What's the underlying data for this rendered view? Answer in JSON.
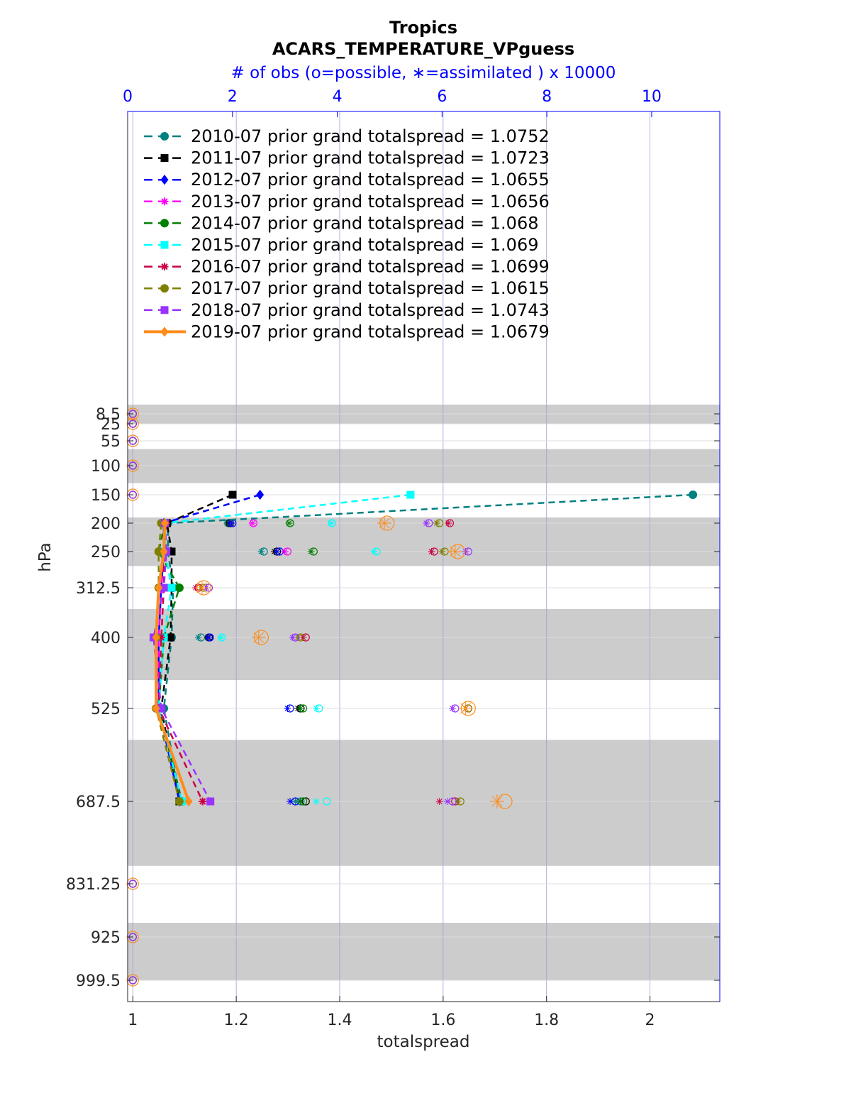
{
  "chart_data": {
    "type": "line",
    "title": "Tropics",
    "subtitle": "ACARS_TEMPERATURE_VPguess",
    "top_axis_label": "# of obs (o=possible, ∗=assimilated ) x 10000",
    "xlabel": "totalspread",
    "ylabel": "hPa",
    "xlim": [
      0.99,
      2.135
    ],
    "top_xlim": [
      0,
      11.3
    ],
    "y_order": "reversed",
    "x_ticks": [
      1,
      1.2,
      1.4,
      1.6,
      1.8,
      2
    ],
    "x_tick_labels": [
      "1",
      "1.2",
      "1.4",
      "1.6",
      "1.8",
      "2"
    ],
    "top_ticks": [
      0,
      2,
      4,
      6,
      8,
      10
    ],
    "top_tick_labels": [
      "0",
      "2",
      "4",
      "6",
      "8",
      "10"
    ],
    "levels": [
      "8.5",
      "25",
      "55",
      "100",
      "150",
      "200",
      "250",
      "312.5",
      "400",
      "525",
      "687.5",
      "831.25",
      "925",
      "999.5"
    ],
    "shaded_bands": [
      [
        0,
        25
      ],
      [
        70,
        130
      ],
      [
        190,
        275
      ],
      [
        350,
        475
      ],
      [
        580,
        800
      ],
      [
        900,
        999.5
      ]
    ],
    "legend_position": "top-left",
    "series": [
      {
        "name": "2010-07 prior grand totalspread = 1.0752",
        "color": "#008080",
        "marker": "circle",
        "dash": "dashed",
        "y": [
          150,
          200,
          250,
          312.5,
          400,
          525,
          687.5
        ],
        "x": [
          2.083,
          1.068,
          1.068,
          1.078,
          1.075,
          1.06,
          1.092
        ],
        "obs_possible": [
          null,
          1.92,
          2.6,
          null,
          1.4,
          3.3,
          3.3
        ],
        "obs_assim": [
          null,
          1.9,
          2.55,
          null,
          1.35,
          3.25,
          3.2
        ]
      },
      {
        "name": "2011-07 prior grand totalspread = 1.0723",
        "color": "#000000",
        "marker": "square",
        "dash": "dashed",
        "y": [
          150,
          200,
          250,
          312.5,
          400,
          525,
          687.5
        ],
        "x": [
          1.193,
          1.066,
          1.075,
          1.075,
          1.073,
          1.055,
          1.09
        ],
        "obs_possible": [
          null,
          1.95,
          2.85,
          null,
          1.55,
          3.3,
          3.4
        ],
        "obs_assim": [
          null,
          1.93,
          2.8,
          null,
          1.53,
          3.25,
          3.3
        ]
      },
      {
        "name": "2012-07 prior grand totalspread = 1.0655",
        "color": "#0000ff",
        "marker": "diamond",
        "dash": "dashed",
        "y": [
          150,
          200,
          250,
          312.5,
          400,
          525,
          687.5
        ],
        "x": [
          1.246,
          1.06,
          1.06,
          1.055,
          1.05,
          1.05,
          1.09
        ],
        "obs_possible": [
          null,
          2.0,
          2.9,
          null,
          1.57,
          3.1,
          3.2
        ],
        "obs_assim": [
          null,
          1.98,
          2.85,
          null,
          1.55,
          3.05,
          3.1
        ]
      },
      {
        "name": "2013-07 prior grand totalspread = 1.0656",
        "color": "#ff00ff",
        "marker": "star",
        "dash": "dashed",
        "y": [
          200,
          250,
          312.5,
          400,
          525,
          687.5
        ],
        "x": [
          1.06,
          1.06,
          1.055,
          1.05,
          1.05,
          1.095
        ],
        "obs_possible": [
          2.4,
          3.05,
          null,
          null,
          null,
          null
        ],
        "obs_assim": [
          2.38,
          3.0,
          null,
          null,
          null,
          null
        ]
      },
      {
        "name": "2014-07 prior grand totalspread = 1.068",
        "color": "#008000",
        "marker": "hexagram",
        "dash": "dashed",
        "y": [
          200,
          250,
          312.5,
          400,
          525,
          687.5
        ],
        "x": [
          1.062,
          1.05,
          1.09,
          1.06,
          1.05,
          1.095
        ],
        "obs_possible": [
          3.1,
          3.55,
          null,
          null,
          3.35,
          3.35
        ],
        "obs_assim": [
          3.08,
          3.5,
          null,
          null,
          3.3,
          3.3
        ]
      },
      {
        "name": "2015-07 prior grand totalspread = 1.069",
        "color": "#00ffff",
        "marker": "square",
        "dash": "dashed",
        "y": [
          150,
          200,
          250,
          312.5,
          400,
          525,
          687.5
        ],
        "x": [
          1.537,
          1.062,
          1.062,
          1.075,
          1.06,
          1.05,
          1.095
        ],
        "obs_possible": [
          null,
          3.9,
          4.75,
          null,
          1.8,
          3.65,
          3.8
        ],
        "obs_assim": [
          null,
          3.88,
          4.7,
          null,
          1.78,
          3.6,
          3.6
        ]
      },
      {
        "name": "2016-07 prior grand totalspread = 1.0699",
        "color": "#cc0044",
        "marker": "asterisk",
        "dash": "dashed",
        "y": [
          200,
          250,
          312.5,
          400,
          525,
          687.5
        ],
        "x": [
          1.065,
          1.06,
          1.06,
          1.055,
          1.05,
          1.135
        ],
        "obs_possible": [
          6.15,
          5.85,
          1.35,
          3.4,
          6.5,
          6.25
        ],
        "obs_assim": [
          6.12,
          5.8,
          1.3,
          3.35,
          6.45,
          5.95
        ]
      },
      {
        "name": "2017-07 prior grand totalspread = 1.0615",
        "color": "#808000",
        "marker": "circle",
        "dash": "dashed",
        "y": [
          200,
          250,
          312.5,
          400,
          525,
          687.5
        ],
        "x": [
          1.055,
          1.05,
          1.05,
          1.045,
          1.045,
          1.09
        ],
        "obs_possible": [
          5.95,
          6.05,
          1.45,
          3.3,
          6.5,
          6.35
        ],
        "obs_assim": [
          5.9,
          6.0,
          1.4,
          3.25,
          6.45,
          6.3
        ]
      },
      {
        "name": "2018-07 prior grand totalspread = 1.0743",
        "color": "#9933ff",
        "marker": "square",
        "dash": "dashed",
        "y": [
          200,
          250,
          312.5,
          400,
          525,
          687.5
        ],
        "x": [
          1.062,
          1.065,
          1.06,
          1.04,
          1.055,
          1.15
        ],
        "obs_possible": [
          5.75,
          6.5,
          1.55,
          3.2,
          6.25,
          6.2
        ],
        "obs_assim": [
          5.7,
          6.45,
          1.5,
          3.15,
          6.2,
          6.1
        ]
      },
      {
        "name": "2019-07 prior grand totalspread = 1.0679",
        "color": "#ff8c1a",
        "marker": "diamond",
        "dash": "solid",
        "y": [
          200,
          250,
          312.5,
          400,
          525,
          687.5
        ],
        "x": [
          1.062,
          1.06,
          1.05,
          1.045,
          1.045,
          1.108
        ],
        "obs_possible": [
          4.95,
          6.3,
          1.45,
          2.55,
          6.5,
          7.2
        ],
        "obs_assim": [
          4.9,
          6.25,
          1.42,
          2.5,
          6.45,
          7.05
        ]
      }
    ]
  }
}
